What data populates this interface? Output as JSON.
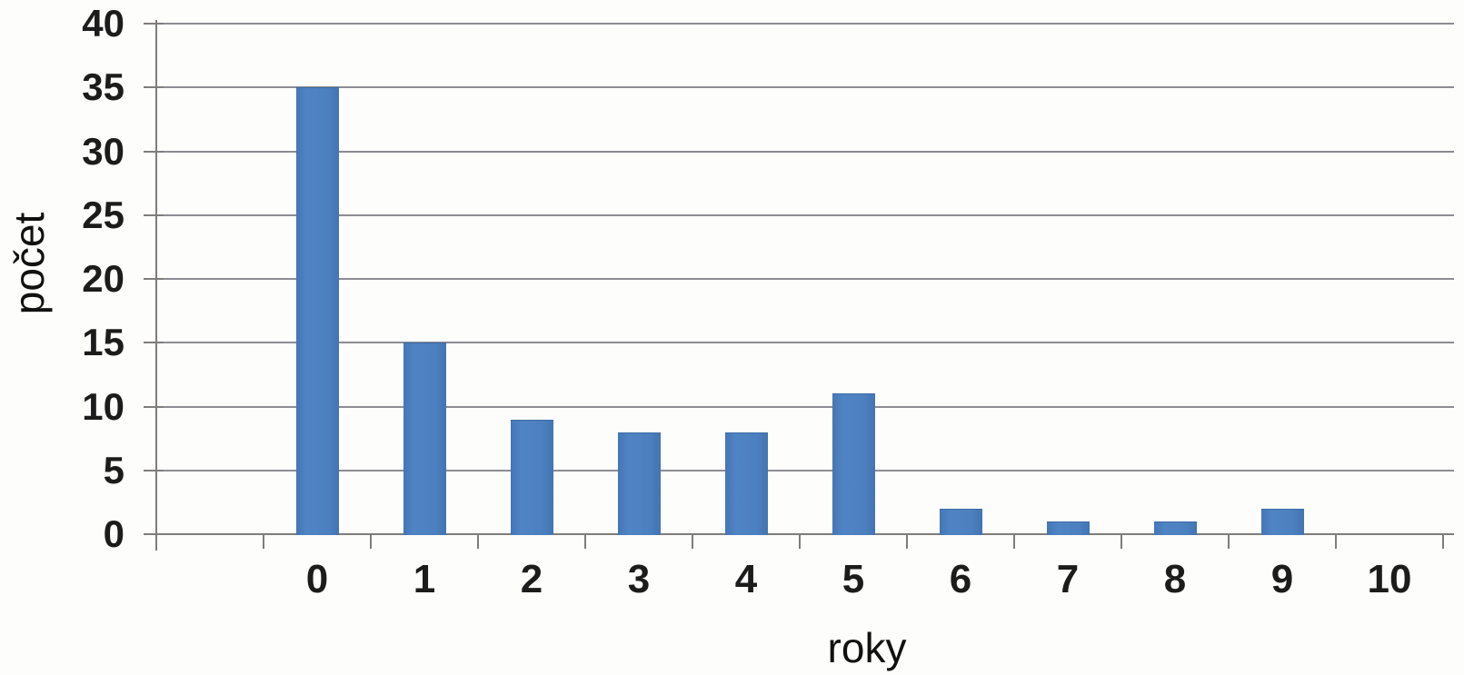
{
  "chart_data": {
    "type": "bar",
    "title": "",
    "categories": [
      "0",
      "1",
      "2",
      "3",
      "4",
      "5",
      "6",
      "7",
      "8",
      "9",
      "10"
    ],
    "values": [
      35,
      15,
      9,
      8,
      8,
      11,
      2,
      1,
      1,
      2,
      0
    ],
    "xlabel": "roky",
    "ylabel": "počet",
    "ylim": [
      0,
      40
    ],
    "yticks": [
      0,
      5,
      10,
      15,
      20,
      25,
      30,
      35,
      40
    ],
    "grid": "horizontal-only",
    "legend_position": "none",
    "colors": {
      "bar": "#4c7fbe",
      "bar_edge": "#3e6ca6",
      "gridline": "#8c8c94",
      "axis": "#7f7d7a",
      "text": "#1c1c1c",
      "background": "#fdfdfb"
    }
  }
}
